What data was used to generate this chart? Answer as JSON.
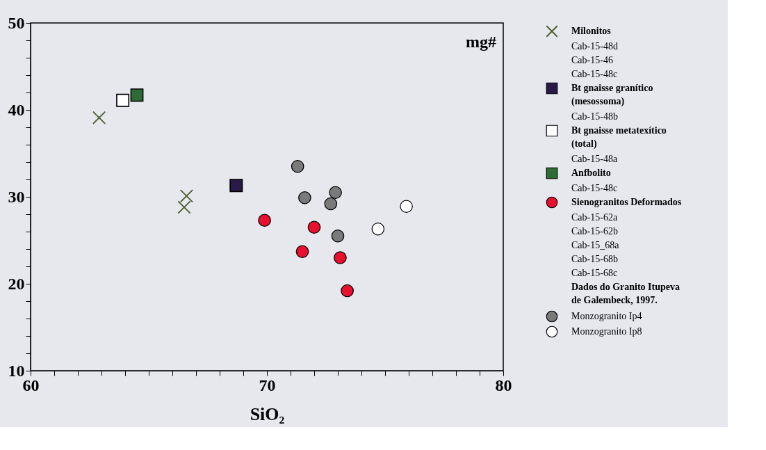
{
  "chart_data": {
    "type": "scatter",
    "xlabel": "SiO₂",
    "annotations": [
      "mg#",
      "Cab-15-48d",
      "Cab-15-46",
      "Cab-15-48c",
      "Cab-15-48b",
      "Cab-15-48a",
      "Cab-15-48c",
      "Cab-15-62a",
      "Cab-15-62b",
      "Cab-15_68a",
      "Cab-15-68b",
      "Cab-15-68c",
      "Dados do Granito Itupeva\nde Galembeck, 1997."
    ],
    "grid": false,
    "xlim": [
      60,
      80
    ],
    "ylim": [
      10,
      50
    ],
    "xticks": [
      60,
      {
        "value": 61,
        "label": null
      },
      {
        "value": 62,
        "label": null
      },
      {
        "value": 63,
        "label": null
      },
      {
        "value": 64,
        "label": null
      },
      {
        "value": 65,
        "label": null
      },
      {
        "value": 66,
        "label": null
      },
      {
        "value": 67,
        "label": null
      },
      {
        "value": 68,
        "label": null
      },
      {
        "value": 69,
        "label": null
      },
      70,
      {
        "value": 71,
        "label": null
      },
      {
        "value": 72,
        "label": null
      },
      {
        "value": 73,
        "label": null
      },
      {
        "value": 74,
        "label": null
      },
      {
        "value": 75,
        "label": null
      },
      {
        "value": 76,
        "label": null
      },
      {
        "value": 77,
        "label": null
      },
      {
        "value": 78,
        "label": null
      },
      {
        "value": 79,
        "label": null
      },
      80
    ],
    "yticks": [
      10,
      {
        "value": 12,
        "label": null
      },
      {
        "value": 14,
        "label": null
      },
      {
        "value": 16,
        "label": null
      },
      {
        "value": 18,
        "label": null
      },
      20,
      {
        "value": 22,
        "label": null
      },
      {
        "value": 24,
        "label": null
      },
      {
        "value": 26,
        "label": null
      },
      {
        "value": 28,
        "label": null
      },
      30,
      {
        "value": 32,
        "label": null
      },
      {
        "value": 34,
        "label": null
      },
      {
        "value": 36,
        "label": null
      },
      {
        "value": 38,
        "label": null
      },
      40,
      {
        "value": 42,
        "label": null
      },
      {
        "value": 44,
        "label": null
      },
      {
        "value": 46,
        "label": null
      },
      {
        "value": 48,
        "label": null
      },
      50
    ],
    "legend": "right",
    "series": [
      {
        "name": "Milonitos",
        "marker": "cross",
        "color": "#4a5a2a",
        "x": [
          62.9,
          66.6,
          66.5
        ],
        "values": [
          39.1,
          30.1,
          28.8
        ]
      },
      {
        "name": "Bt gnaisse  granítico\n(mesossoma)",
        "marker": "square",
        "color": "#2a1a4a",
        "x": [
          68.7
        ],
        "values": [
          31.3
        ]
      },
      {
        "name": "Bt gnaisse metatexítico\n(total)",
        "marker": "square",
        "color": "#ffffff",
        "x": [
          63.9
        ],
        "values": [
          41.1
        ]
      },
      {
        "name": "Anfbolito",
        "marker": "square",
        "color": "#2f6b35",
        "x": [
          64.5
        ],
        "values": [
          41.7
        ]
      },
      {
        "name": "Sienogranitos Deformados",
        "marker": "circle",
        "color": "#e8102e",
        "x": [
          69.9,
          72.0,
          71.5,
          73.1,
          73.4
        ],
        "values": [
          27.3,
          26.5,
          23.7,
          23.0,
          19.2
        ]
      },
      {
        "name": "Monzogranito Ip4",
        "marker": "circle",
        "color": "#7a7a7a",
        "x": [
          71.3,
          71.6,
          72.9,
          72.7,
          73.0
        ],
        "values": [
          33.5,
          29.9,
          30.5,
          29.2,
          25.5
        ]
      },
      {
        "name": "Monzogranito Ip8",
        "marker": "circle",
        "color": "#ffffff",
        "x": [
          74.7,
          75.9
        ],
        "values": [
          26.3,
          28.9
        ]
      }
    ]
  }
}
